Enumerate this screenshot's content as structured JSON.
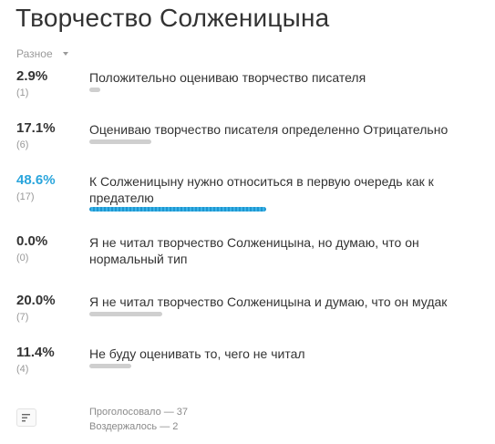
{
  "poll": {
    "title": "Творчество Солженицына",
    "category": "Разное"
  },
  "options": [
    {
      "percent": "2.9%",
      "count": "(1)",
      "label": "Положительно оцениваю творчество писателя",
      "share": 0.029,
      "winner": false
    },
    {
      "percent": "17.1%",
      "count": "(6)",
      "label": "Оцениваю творчество писателя определенно Отрицательно",
      "share": 0.171,
      "winner": false
    },
    {
      "percent": "48.6%",
      "count": "(17)",
      "label": "К Солженицыну нужно относиться в первую очередь как к предателю",
      "share": 0.486,
      "winner": true
    },
    {
      "percent": "0.0%",
      "count": "(0)",
      "label": "Я не читал творчество Солженицына, но думаю, что он нормальный тип",
      "share": 0.0,
      "winner": false
    },
    {
      "percent": "20.0%",
      "count": "(7)",
      "label": "Я не читал творчество Солженицына и думаю, что он мудак",
      "share": 0.2,
      "winner": false
    },
    {
      "percent": "11.4%",
      "count": "(4)",
      "label": "Не буду оценивать то, чего не читал",
      "share": 0.114,
      "winner": false
    }
  ],
  "stats": {
    "voted": "Проголосовало — 37",
    "abstained": "Воздержалось — 2"
  },
  "colors": {
    "accent": "#2aa5dc",
    "bar": "#cfcfcf",
    "text": "#333333",
    "muted": "#999999"
  },
  "icons": {
    "category_toggle": "caret-down-icon",
    "footer_button": "list-icon"
  }
}
